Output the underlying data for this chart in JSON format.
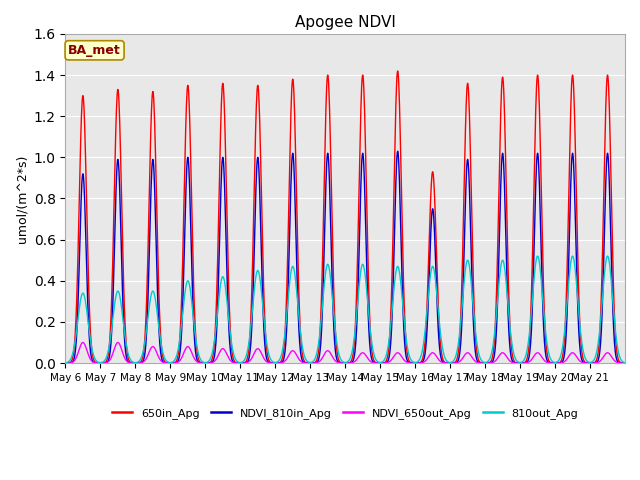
{
  "title": "Apogee NDVI",
  "ylabel_display": "umol/(m^2*s)",
  "annotation": "BA_met",
  "ylim": [
    0,
    1.6
  ],
  "yticks": [
    0.0,
    0.2,
    0.4,
    0.6,
    0.8,
    1.0,
    1.2,
    1.4,
    1.6
  ],
  "series": {
    "650in_Apg": {
      "color": "#ff0000",
      "linewidth": 1.0
    },
    "NDVI_810in_Apg": {
      "color": "#0000cc",
      "linewidth": 1.0
    },
    "NDVI_650out_Apg": {
      "color": "#ff00ff",
      "linewidth": 1.0
    },
    "810out_Apg": {
      "color": "#00cccc",
      "linewidth": 1.0
    }
  },
  "facecolor": "#e8e8e8",
  "annotation_facecolor": "#ffffcc",
  "annotation_edgecolor": "#aa8800",
  "annotation_textcolor": "#880000",
  "peak_650": [
    1.3,
    1.33,
    1.32,
    1.35,
    1.36,
    1.35,
    1.38,
    1.4,
    1.4,
    1.42,
    0.93,
    1.36,
    1.39,
    1.4,
    1.4,
    1.4
  ],
  "peak_810": [
    0.92,
    0.99,
    0.99,
    1.0,
    1.0,
    1.0,
    1.02,
    1.02,
    1.02,
    1.03,
    0.75,
    0.99,
    1.02,
    1.02,
    1.02,
    1.02
  ],
  "peak_650out": [
    0.1,
    0.1,
    0.08,
    0.08,
    0.07,
    0.07,
    0.06,
    0.06,
    0.05,
    0.05,
    0.05,
    0.05,
    0.05,
    0.05,
    0.05,
    0.05
  ],
  "peak_810out": [
    0.34,
    0.35,
    0.35,
    0.4,
    0.42,
    0.45,
    0.47,
    0.48,
    0.48,
    0.47,
    0.47,
    0.5,
    0.5,
    0.52,
    0.52,
    0.52
  ],
  "sigma_650": 2.5,
  "sigma_810": 2.2,
  "sigma_650out": 2.8,
  "sigma_810out": 3.5,
  "n_days": 16,
  "peak_hour": 12.0
}
